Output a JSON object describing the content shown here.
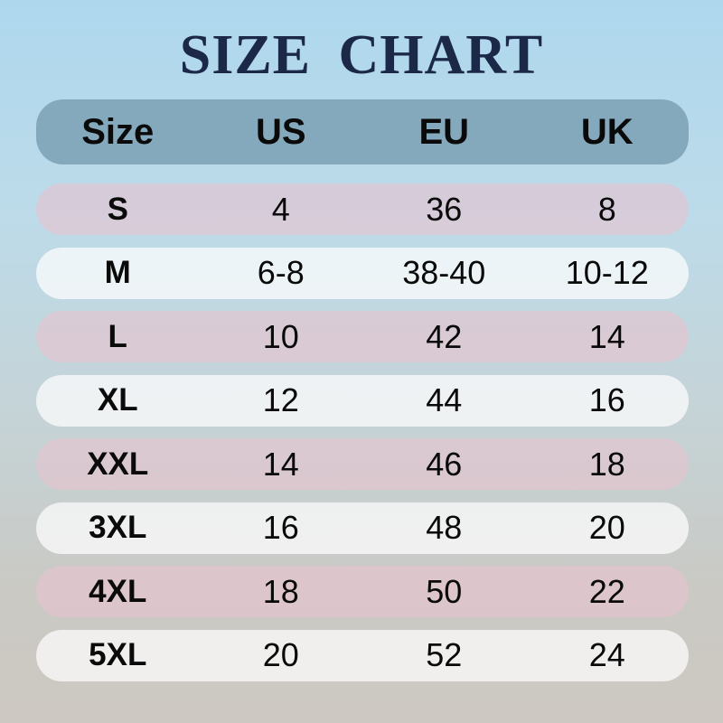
{
  "title": "SIZE CHART",
  "table": {
    "headers": [
      "Size",
      "US",
      "EU",
      "UK"
    ],
    "rows": [
      {
        "size": "S",
        "us": "4",
        "eu": "36",
        "uk": "8"
      },
      {
        "size": "M",
        "us": "6-8",
        "eu": "38-40",
        "uk": "10-12"
      },
      {
        "size": "L",
        "us": "10",
        "eu": "42",
        "uk": "14"
      },
      {
        "size": "XL",
        "us": "12",
        "eu": "44",
        "uk": "16"
      },
      {
        "size": "XXL",
        "us": "14",
        "eu": "46",
        "uk": "18"
      },
      {
        "size": "3XL",
        "us": "16",
        "eu": "48",
        "uk": "20"
      },
      {
        "size": "4XL",
        "us": "18",
        "eu": "50",
        "uk": "22"
      },
      {
        "size": "5XL",
        "us": "20",
        "eu": "52",
        "uk": "24"
      }
    ]
  },
  "colors": {
    "title_text": "#1c2847",
    "header_bg": "#85a9bc",
    "row_pink": "rgba(231,195,206,0.62)",
    "row_light": "rgba(253,254,253,0.72)",
    "cell_text": "#0a0a0a",
    "bg_top": "#aed7ee",
    "bg_bottom": "#cdc8c1"
  },
  "chart_data": {
    "type": "table",
    "title": "SIZE CHART",
    "columns": [
      "Size",
      "US",
      "EU",
      "UK"
    ],
    "rows": [
      [
        "S",
        "4",
        "36",
        "8"
      ],
      [
        "M",
        "6-8",
        "38-40",
        "10-12"
      ],
      [
        "L",
        "10",
        "42",
        "14"
      ],
      [
        "XL",
        "12",
        "44",
        "16"
      ],
      [
        "XXL",
        "14",
        "46",
        "18"
      ],
      [
        "3XL",
        "16",
        "48",
        "20"
      ],
      [
        "4XL",
        "18",
        "50",
        "22"
      ],
      [
        "5XL",
        "20",
        "52",
        "24"
      ]
    ],
    "layout_hints": {
      "header_style": "slate-blue pill",
      "row_striping": [
        "pink",
        "white"
      ],
      "background": "vertical gradient light-blue to warm-gray",
      "alignment": "all columns centered"
    }
  }
}
